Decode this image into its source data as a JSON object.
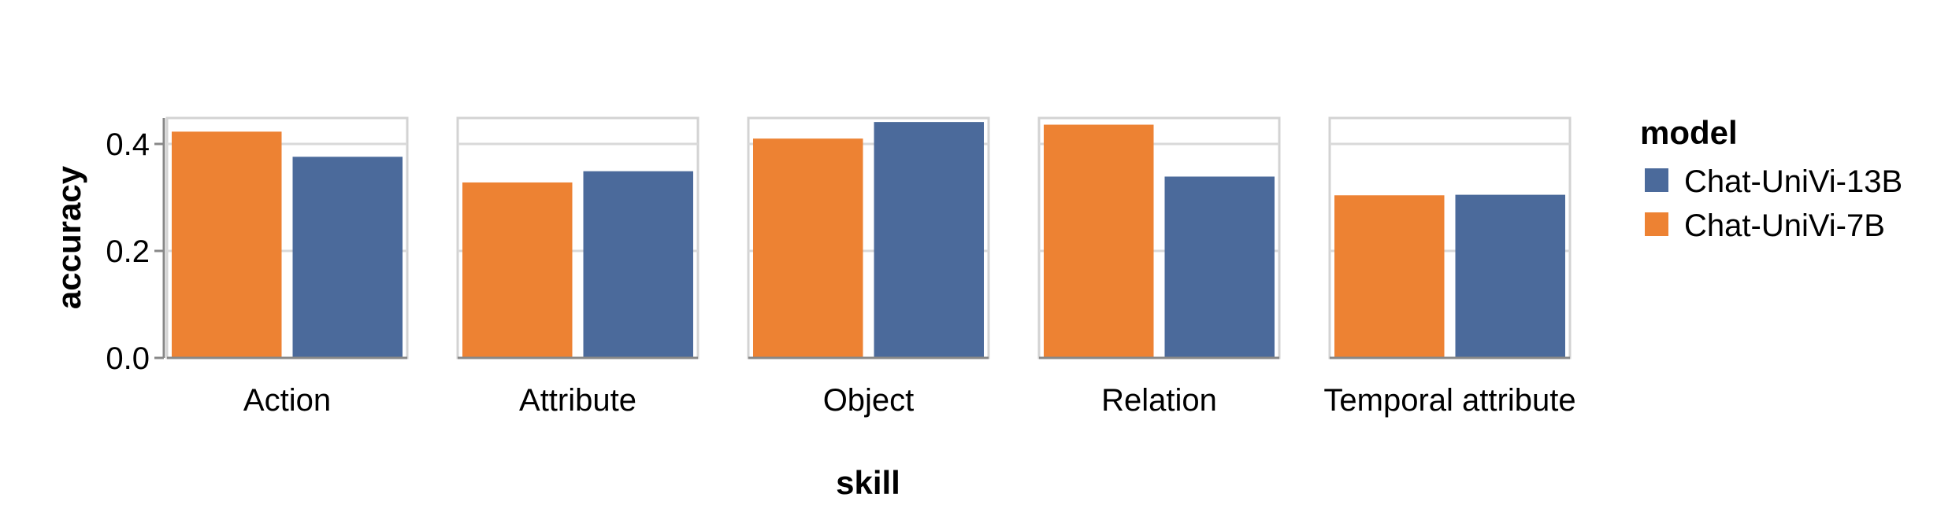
{
  "chart_data": {
    "type": "bar",
    "xlabel": "skill",
    "ylabel": "accuracy",
    "ylim": [
      0,
      0.45
    ],
    "yticks": [
      "0.0",
      "0.2",
      "0.4"
    ],
    "grid": true,
    "facets": [
      "Action",
      "Attribute",
      "Object",
      "Relation",
      "Temporal attribute"
    ],
    "series": [
      {
        "name": "Chat-UniVi-7B",
        "color": "#ED8233",
        "values": [
          0.423,
          0.328,
          0.41,
          0.436,
          0.304
        ]
      },
      {
        "name": "Chat-UniVi-13B",
        "color": "#4B6A9B",
        "values": [
          0.376,
          0.349,
          0.441,
          0.339,
          0.305
        ]
      }
    ],
    "legend": {
      "title": "model",
      "placement": "right",
      "entries": [
        {
          "label": "Chat-UniVi-13B",
          "color": "#4B6A9B"
        },
        {
          "label": "Chat-UniVi-7B",
          "color": "#ED8233"
        }
      ]
    }
  }
}
